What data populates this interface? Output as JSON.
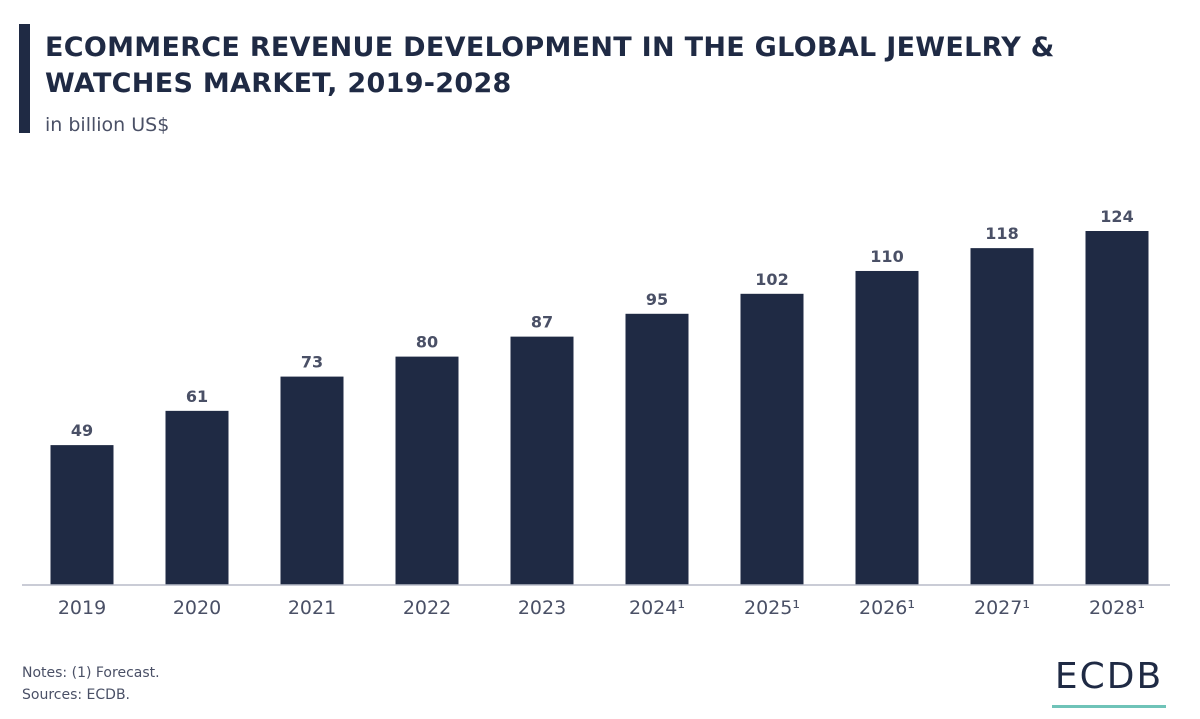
{
  "header": {
    "title": "ECOMMERCE REVENUE DEVELOPMENT IN THE GLOBAL JEWELRY & WATCHES MARKET, 2019-2028",
    "subtitle": "in billion US$"
  },
  "chart_data": {
    "type": "bar",
    "title": "ECOMMERCE REVENUE DEVELOPMENT IN THE GLOBAL JEWELRY & WATCHES MARKET, 2019-2028",
    "subtitle": "in billion US$",
    "categories": [
      "2019",
      "2020",
      "2021",
      "2022",
      "2023",
      "2024¹",
      "2025¹",
      "2026¹",
      "2027¹",
      "2028¹"
    ],
    "values": [
      49,
      61,
      73,
      80,
      87,
      95,
      102,
      110,
      118,
      124
    ],
    "value_labels": [
      "49",
      "61",
      "73",
      "80",
      "87",
      "95",
      "102",
      "110",
      "118",
      "124"
    ],
    "xlabel": "",
    "ylabel": "",
    "ylim": [
      0,
      124
    ],
    "grid": false,
    "legend": "none",
    "bar_color": "#1f2a44"
  },
  "footer": {
    "notes": "Notes: (1) Forecast.",
    "sources": "Sources: ECDB.",
    "logo": "ECDB"
  },
  "colors": {
    "bar": "#1f2a44",
    "text": "#4a5066",
    "accent": "#6fc3b8"
  }
}
